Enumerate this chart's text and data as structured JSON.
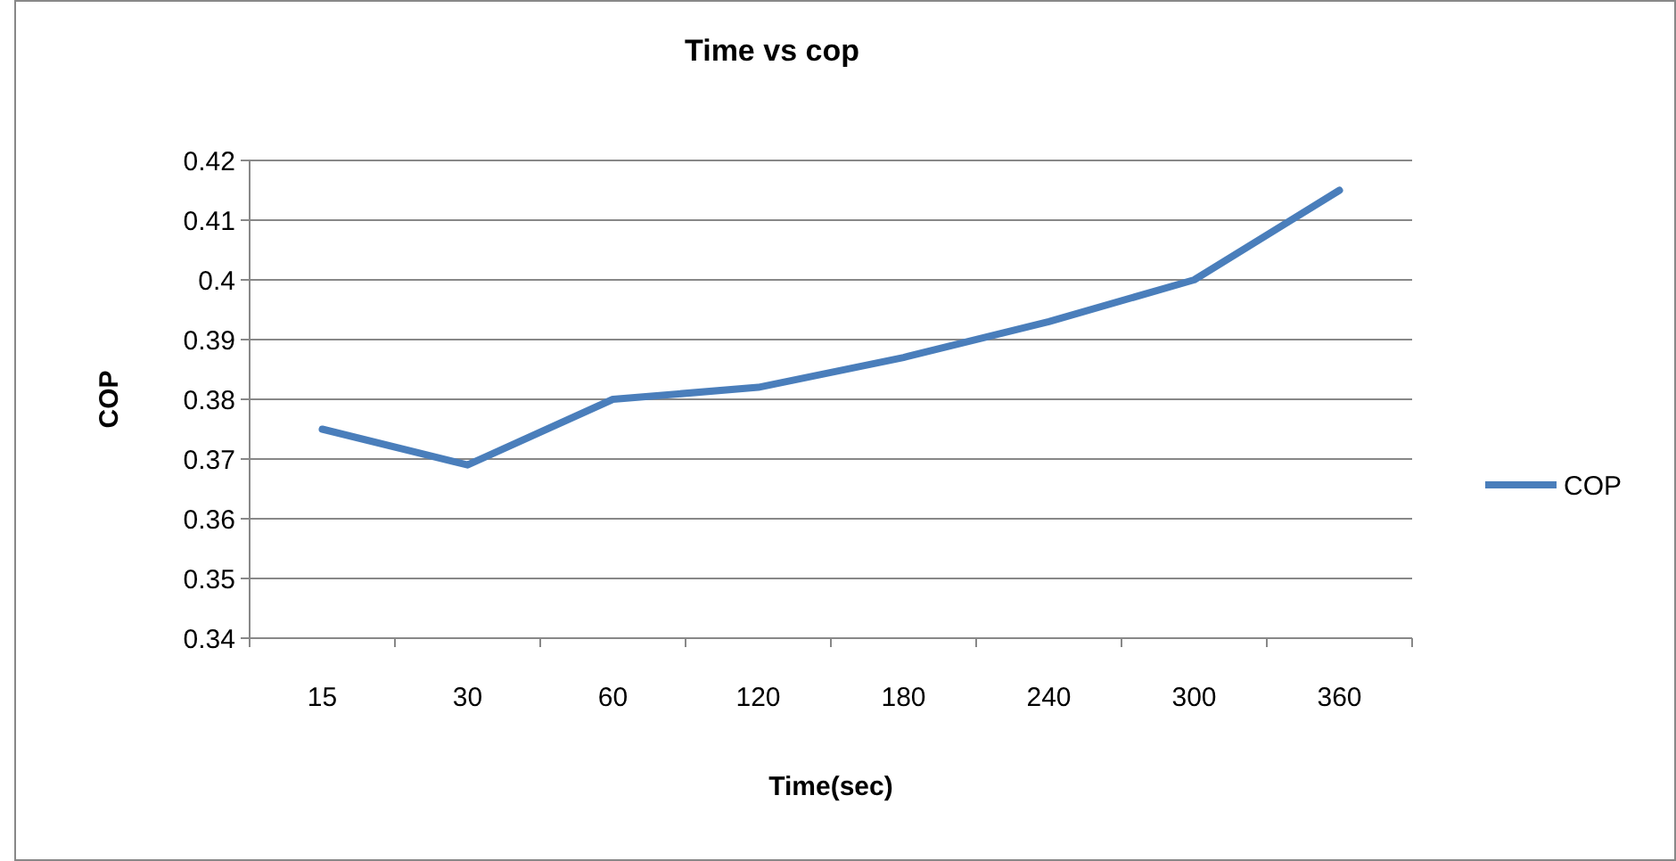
{
  "chart_data": {
    "type": "line",
    "title": "Time vs cop",
    "xlabel": "Time(sec)",
    "ylabel": "COP",
    "categories": [
      "15",
      "30",
      "60",
      "120",
      "180",
      "240",
      "300",
      "360"
    ],
    "series": [
      {
        "name": "COP",
        "color": "#4a7ebb",
        "values": [
          0.375,
          0.369,
          0.38,
          0.382,
          0.387,
          0.393,
          0.4,
          0.415
        ]
      }
    ],
    "ylim": [
      0.34,
      0.42
    ],
    "yticks": [
      0.34,
      0.35,
      0.36,
      0.37,
      0.38,
      0.39,
      {
        "value": 0.4,
        "label": "0.4"
      },
      0.41,
      0.42
    ],
    "grid": "y",
    "legend": "right",
    "marker": "none",
    "line_style": "solid"
  }
}
